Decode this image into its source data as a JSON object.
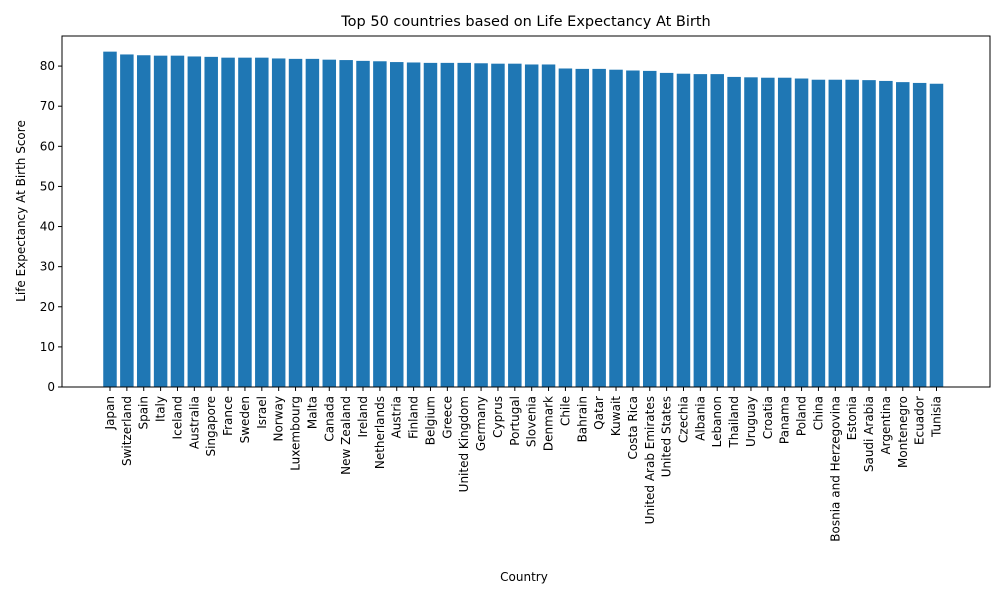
{
  "chart_data": {
    "type": "bar",
    "title": "Top 50 countries based on Life Expectancy At Birth",
    "xlabel": "Country",
    "ylabel": "Life Expectancy At Birth Score",
    "ylim": [
      0,
      87.5
    ],
    "yticks": [
      0,
      10,
      20,
      30,
      40,
      50,
      60,
      70,
      80
    ],
    "grid": false,
    "bar_color": "#1f77b4",
    "categories": [
      "Japan",
      "Switzerland",
      "Spain",
      "Italy",
      "Iceland",
      "Australia",
      "Singapore",
      "France",
      "Sweden",
      "Israel",
      "Norway",
      "Luxembourg",
      "Malta",
      "Canada",
      "New Zealand",
      "Ireland",
      "Netherlands",
      "Austria",
      "Finland",
      "Belgium",
      "Greece",
      "United Kingdom",
      "Germany",
      "Cyprus",
      "Portugal",
      "Slovenia",
      "Denmark",
      "Chile",
      "Bahrain",
      "Qatar",
      "Kuwait",
      "Costa Rica",
      "United Arab Emirates",
      "United States",
      "Czechia",
      "Albania",
      "Lebanon",
      "Thailand",
      "Uruguay",
      "Croatia",
      "Panama",
      "Poland",
      "China",
      "Bosnia and Herzegovina",
      "Estonia",
      "Saudi Arabia",
      "Argentina",
      "Montenegro",
      "Ecuador",
      "Tunisia"
    ],
    "values": [
      83.6,
      82.9,
      82.7,
      82.6,
      82.6,
      82.4,
      82.3,
      82.1,
      82.1,
      82.1,
      81.9,
      81.8,
      81.8,
      81.6,
      81.5,
      81.3,
      81.2,
      81.0,
      80.9,
      80.8,
      80.8,
      80.8,
      80.7,
      80.6,
      80.6,
      80.4,
      80.4,
      79.4,
      79.3,
      79.3,
      79.1,
      78.9,
      78.8,
      78.3,
      78.1,
      78.0,
      78.0,
      77.3,
      77.2,
      77.1,
      77.1,
      76.9,
      76.6,
      76.6,
      76.6,
      76.5,
      76.3,
      76.0,
      75.8,
      75.6
    ]
  }
}
